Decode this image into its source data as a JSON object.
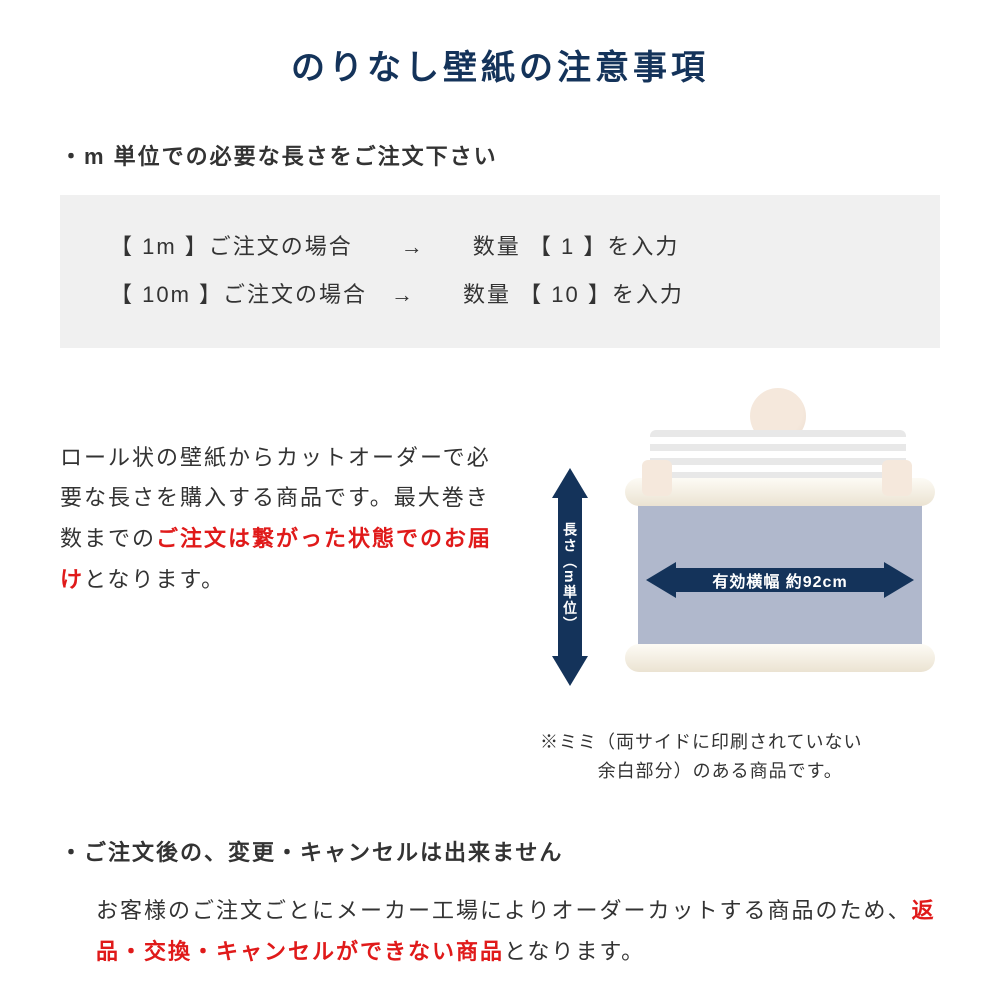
{
  "colors": {
    "navy": "#14335a",
    "red": "#e01a1a",
    "text": "#333333",
    "box_bg": "#f0f0f0",
    "sheet": "#b0b8cc"
  },
  "title": "のりなし壁紙の注意事項",
  "bullet1": "・m 単位での必要な長さをご注文下さい",
  "example": {
    "line1": "【 1m 】ご注文の場合　　→　　数量 【 1 】を入力",
    "line2": "【 10m 】ご注文の場合　→　　数量 【 10 】を入力"
  },
  "desc": {
    "p1": "ロール状の壁紙からカットオーダーで必要な長さを購入する商品です。最大巻き数までの",
    "p2_red": "ご注文は繋がった状態でのお届け",
    "p3": "となります。"
  },
  "diagram": {
    "v_label": "長さ（m単位）",
    "h_label": "有効横幅 約92cm"
  },
  "note": {
    "l1": "※ミミ（両サイドに印刷されていない",
    "l2": "余白部分）のある商品です。"
  },
  "bullet2": "・ご注文後の、変更・キャンセルは出来ません",
  "body2": {
    "p1": "お客様のご注文ごとにメーカー工場によりオーダーカットする商品のため、",
    "p2_red": "返品・交換・キャンセルができない商品",
    "p3": "となります。"
  }
}
